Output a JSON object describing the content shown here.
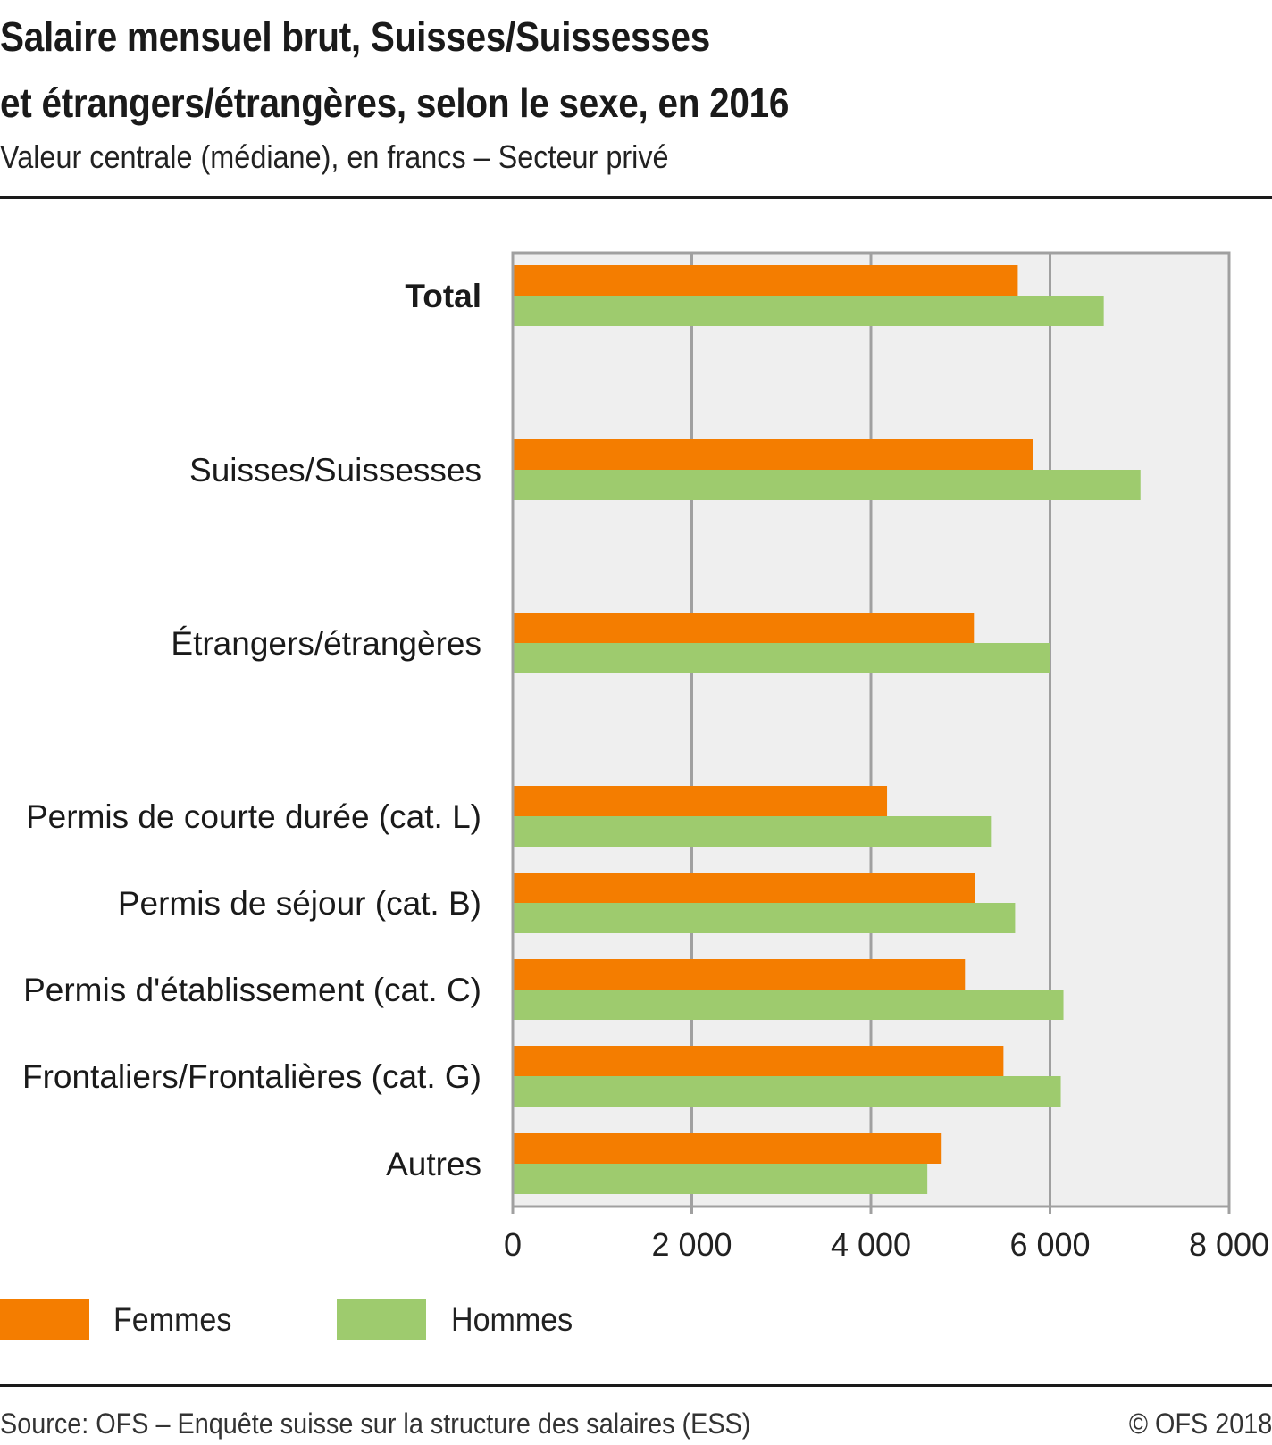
{
  "header": {
    "title_line1": "Salaire mensuel brut, Suisses/Suissesses",
    "title_line2": "et étrangers/étrangères, selon le sexe, en 2016",
    "subtitle": "Valeur centrale (médiane), en francs – Secteur privé"
  },
  "legend": {
    "items": [
      {
        "label": "Femmes",
        "color": "#f47d00"
      },
      {
        "label": "Hommes",
        "color": "#9ecb6e"
      }
    ]
  },
  "footer": {
    "source": "Source: OFS – Enquête suisse sur la structure des salaires (ESS)",
    "copyright": "© OFS 2018"
  },
  "chart_data": {
    "type": "bar",
    "orientation": "horizontal",
    "title": "Salaire mensuel brut, Suisses/Suissesses et étrangers/étrangères, selon le sexe, en 2016",
    "subtitle": "Valeur centrale (médiane), en francs – Secteur privé",
    "xlabel": "",
    "ylabel": "",
    "xlim": [
      0,
      8000
    ],
    "xticks": [
      0,
      2000,
      4000,
      6000,
      8000
    ],
    "xtick_labels": [
      "0",
      "2 000",
      "4 000",
      "6 000",
      "8 000"
    ],
    "grid": true,
    "legend_position": "bottom-left",
    "categories": [
      "Total",
      "Suisses/Suissesses",
      "Étrangers/étrangères",
      "Permis de courte durée (cat. L)",
      "Permis de séjour (cat. B)",
      "Permis d'établissement (cat. C)",
      "Frontaliers/Frontalières (cat. G)",
      "Autres"
    ],
    "category_bold": [
      true,
      false,
      false,
      false,
      false,
      false,
      false,
      false
    ],
    "series": [
      {
        "name": "Femmes",
        "color": "#f47d00",
        "values": [
          5640,
          5810,
          5150,
          4180,
          5160,
          5050,
          5480,
          4790
        ]
      },
      {
        "name": "Hommes",
        "color": "#9ecb6e",
        "values": [
          6600,
          7010,
          6000,
          5340,
          5610,
          6150,
          6120,
          4630
        ]
      }
    ],
    "colors": {
      "plot_background": "#efefef",
      "frame": "#a0a0a0",
      "grid": "#a0a0a0"
    }
  }
}
